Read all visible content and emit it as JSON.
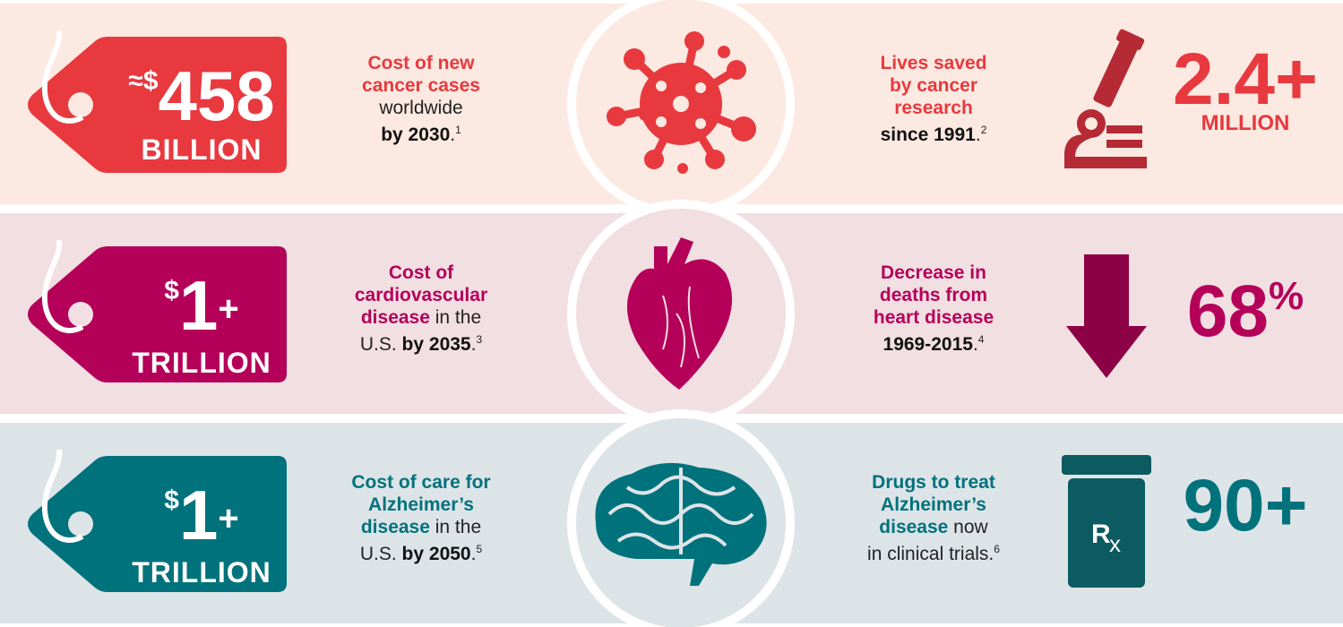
{
  "rows": [
    {
      "color": "#e8393f",
      "background": "#fce9e1",
      "icon_color": "#b52a35",
      "tag": {
        "prefix": "≈",
        "currency": "$",
        "amount": "458",
        "unit": "BILLION"
      },
      "left": [
        [
          {
            "text": "Cost of new",
            "style": "headline"
          }
        ],
        [
          {
            "text": "cancer cases",
            "style": "headline"
          }
        ],
        [
          {
            "text": "worldwide",
            "style": "plain"
          }
        ],
        [
          {
            "text": "by 2030",
            "style": "bold"
          },
          {
            "text": ".",
            "style": "plain"
          },
          {
            "text": "1",
            "style": "note"
          }
        ]
      ],
      "right": [
        [
          {
            "text": "Lives saved",
            "style": "headline"
          }
        ],
        [
          {
            "text": "by cancer",
            "style": "headline"
          }
        ],
        [
          {
            "text": "research",
            "style": "headline"
          }
        ],
        [
          {
            "text": "since 1991",
            "style": "bold"
          },
          {
            "text": ".",
            "style": "plain"
          },
          {
            "text": "2",
            "style": "note"
          }
        ]
      ],
      "stat": {
        "amount": "2.4+",
        "unit": "MILLION"
      }
    },
    {
      "color": "#b5005a",
      "background": "#f2dfe2",
      "icon_color": "#8c0045",
      "tag": {
        "currency": "$",
        "amount": "1",
        "suffix": "+",
        "unit": "TRILLION"
      },
      "left": [
        [
          {
            "text": "Cost of",
            "style": "headline"
          }
        ],
        [
          {
            "text": "cardiovascular",
            "style": "headline"
          }
        ],
        [
          {
            "text": "disease",
            "style": "headline"
          },
          {
            "text": " in the",
            "style": "plain"
          }
        ],
        [
          {
            "text": "U.S. ",
            "style": "plain"
          },
          {
            "text": "by 2035",
            "style": "bold"
          },
          {
            "text": ".",
            "style": "plain"
          },
          {
            "text": "3",
            "style": "note"
          }
        ]
      ],
      "right": [
        [
          {
            "text": "Decrease in",
            "style": "headline"
          }
        ],
        [
          {
            "text": "deaths from",
            "style": "headline"
          }
        ],
        [
          {
            "text": "heart disease",
            "style": "headline"
          }
        ],
        [
          {
            "text": "1969-2015",
            "style": "bold"
          },
          {
            "text": ".",
            "style": "plain"
          },
          {
            "text": "4",
            "style": "note"
          }
        ]
      ],
      "stat": {
        "amount": "68",
        "suffix": "%"
      }
    },
    {
      "color": "#00727c",
      "background": "#dde4e8",
      "icon_color": "#0c5a62",
      "tag": {
        "currency": "$",
        "amount": "1",
        "suffix": "+",
        "unit": "TRILLION"
      },
      "left": [
        [
          {
            "text": "Cost of care for",
            "style": "headline"
          }
        ],
        [
          {
            "text": "Alzheimer’s",
            "style": "headline"
          }
        ],
        [
          {
            "text": "disease",
            "style": "headline"
          },
          {
            "text": " in the",
            "style": "plain"
          }
        ],
        [
          {
            "text": "U.S. ",
            "style": "plain"
          },
          {
            "text": "by 2050",
            "style": "bold"
          },
          {
            "text": ".",
            "style": "plain"
          },
          {
            "text": "5",
            "style": "note"
          }
        ]
      ],
      "right": [
        [
          {
            "text": "Drugs to treat",
            "style": "headline"
          }
        ],
        [
          {
            "text": "Alzheimer’s",
            "style": "headline"
          }
        ],
        [
          {
            "text": "disease",
            "style": "headline"
          },
          {
            "text": " now",
            "style": "plain"
          }
        ],
        [
          {
            "text": "in clinical trials.",
            "style": "plain"
          },
          {
            "text": "6",
            "style": "note"
          }
        ]
      ],
      "stat": {
        "amount": "90+"
      },
      "rx": {
        "letter": "R",
        "sub": "x"
      }
    }
  ]
}
